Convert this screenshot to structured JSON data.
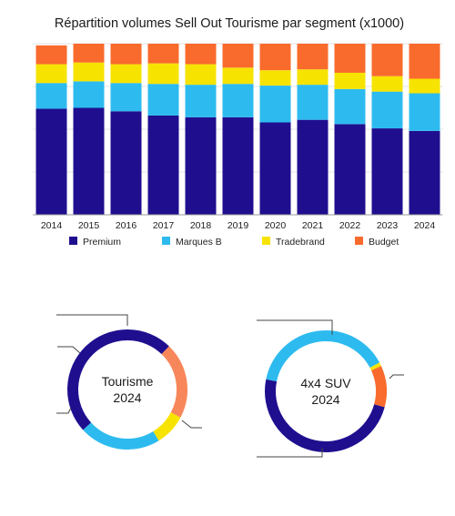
{
  "chart_data": [
    {
      "type": "bar",
      "stacked": true,
      "normalized": true,
      "title": "Répartition volumes Sell Out Tourisme par segment (x1000)",
      "categories": [
        "2014",
        "2015",
        "2016",
        "2017",
        "2018",
        "2019",
        "2020",
        "2021",
        "2022",
        "2023",
        "2024"
      ],
      "series": [
        {
          "name": "Premium",
          "color": "#1f0f8f",
          "values": [
            0.62,
            0.625,
            0.605,
            0.58,
            0.57,
            0.57,
            0.54,
            0.555,
            0.53,
            0.505,
            0.49
          ]
        },
        {
          "name": "Marques B",
          "color": "#2dbbef",
          "values": [
            0.15,
            0.155,
            0.165,
            0.185,
            0.19,
            0.195,
            0.215,
            0.205,
            0.205,
            0.215,
            0.22
          ]
        },
        {
          "name": "Tradebrand",
          "color": "#f7e300",
          "values": [
            0.11,
            0.11,
            0.11,
            0.12,
            0.12,
            0.095,
            0.09,
            0.09,
            0.095,
            0.09,
            0.085
          ]
        },
        {
          "name": "Budget",
          "color": "#f96b2d",
          "values": [
            0.11,
            0.11,
            0.12,
            0.115,
            0.12,
            0.14,
            0.155,
            0.15,
            0.17,
            0.19,
            0.205
          ]
        }
      ],
      "ylim": [
        0,
        1
      ],
      "grid": true,
      "legend": "bottom"
    },
    {
      "type": "pie",
      "variant": "donut",
      "center_label": [
        "Tourisme",
        "2024"
      ],
      "slices": [
        {
          "name": "Premium",
          "value": 0.49,
          "color": "#1f0f8f"
        },
        {
          "name": "Marques B",
          "value": 0.22,
          "color": "#2dbbef"
        },
        {
          "name": "Tradebrand",
          "value": 0.085,
          "color": "#f7e300"
        },
        {
          "name": "Budget",
          "value": 0.205,
          "color": "#f7875a"
        }
      ]
    },
    {
      "type": "pie",
      "variant": "donut",
      "center_label": [
        "4x4 SUV",
        "2024"
      ],
      "slices": [
        {
          "name": "Premium",
          "value": 0.49,
          "color": "#1f0f8f"
        },
        {
          "name": "Marques B",
          "value": 0.39,
          "color": "#2dbbef"
        },
        {
          "name": "Tradebrand",
          "value": 0.01,
          "color": "#f7e300"
        },
        {
          "name": "Budget",
          "value": 0.11,
          "color": "#f96b2d"
        }
      ]
    }
  ]
}
